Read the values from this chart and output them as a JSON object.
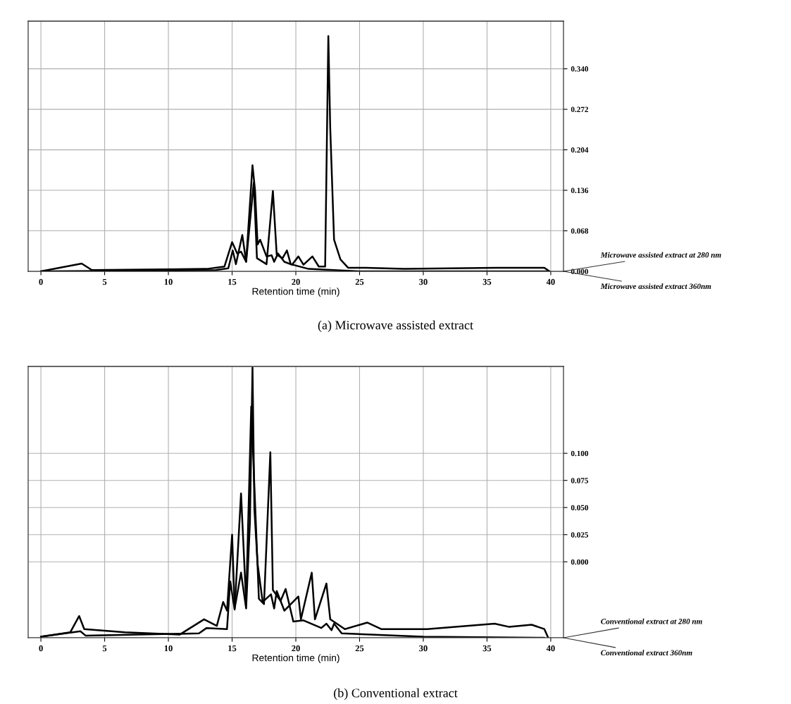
{
  "chart_data": [
    {
      "type": "line",
      "title": "(a) Microwave assisted extract",
      "xlabel": "Retention time (min)",
      "xlim": [
        -1,
        41
      ],
      "xticks": [
        0,
        5,
        10,
        15,
        20,
        25,
        30,
        35,
        40
      ],
      "ylim": [
        0,
        0.42
      ],
      "yticks": [
        {
          "value": 0,
          "label": "0.000"
        },
        {
          "value": 0.068,
          "label": "0.068"
        },
        {
          "value": 0.136,
          "label": "0.136"
        },
        {
          "value": 0.204,
          "label": "0.204"
        },
        {
          "value": 0.272,
          "label": "0.272"
        },
        {
          "value": 0.34,
          "label": "0.340"
        }
      ],
      "grid": true,
      "series": [
        {
          "name": "Microwave assisted extract at 280 nm",
          "color": "#000000",
          "x": [
            0,
            3.2,
            4.0,
            13.0,
            14.4,
            15.0,
            15.4,
            15.7,
            16.1,
            16.6,
            16.8,
            17.0,
            17.2,
            17.7,
            18.1,
            18.3,
            18.6,
            19.1,
            19.7,
            20.2,
            20.6,
            21.3,
            21.8,
            22.3,
            22.55,
            22.7,
            23.0,
            23.5,
            24.1,
            25.5,
            28.5,
            35.7,
            39.5,
            39.9
          ],
          "values": [
            0,
            0.013,
            0.002,
            0.004,
            0.008,
            0.049,
            0.03,
            0.033,
            0.016,
            0.178,
            0.136,
            0.045,
            0.053,
            0.025,
            0.027,
            0.016,
            0.03,
            0.016,
            0.011,
            0.025,
            0.011,
            0.025,
            0.008,
            0.008,
            0.395,
            0.24,
            0.053,
            0.02,
            0.006,
            0.006,
            0.004,
            0.006,
            0.006,
            0
          ]
        },
        {
          "name": "Microwave assisted extract 360nm",
          "color": "#000000",
          "x": [
            0,
            13.7,
            14.7,
            15.05,
            15.3,
            15.8,
            16.1,
            16.7,
            16.95,
            17.7,
            18.2,
            18.5,
            18.96,
            19.3,
            19.6,
            21.0,
            25.0,
            39.9
          ],
          "values": [
            0,
            0.002,
            0.005,
            0.035,
            0.012,
            0.061,
            0.016,
            0.149,
            0.022,
            0.012,
            0.135,
            0.028,
            0.022,
            0.035,
            0.012,
            0.004,
            0,
            0
          ]
        }
      ]
    },
    {
      "type": "line",
      "title": "(b) Conventional extract",
      "xlabel": "Retention time (min)",
      "xlim": [
        -1,
        41
      ],
      "xticks": [
        0,
        5,
        10,
        15,
        20,
        25,
        30,
        35,
        40
      ],
      "ylim": [
        -0.07,
        0.18
      ],
      "yticks": [
        {
          "value": 0,
          "label": "0.000"
        },
        {
          "value": 0.025,
          "label": "0.025"
        },
        {
          "value": 0.05,
          "label": "0.050"
        },
        {
          "value": 0.075,
          "label": "0.075"
        },
        {
          "value": 0.1,
          "label": "0.100"
        }
      ],
      "grid": true,
      "series": [
        {
          "name": "Conventional extract at 280 nm",
          "color": "#000000",
          "x": [
            0,
            2.3,
            3.0,
            3.4,
            6.6,
            10.9,
            12.8,
            13.8,
            14.3,
            14.6,
            15.0,
            15.2,
            15.7,
            16.1,
            16.4,
            16.6,
            16.75,
            17.0,
            17.4,
            18.05,
            18.3,
            18.5,
            19.1,
            20.2,
            20.4,
            21.25,
            21.5,
            22.4,
            22.7,
            23.85,
            25.6,
            26.7,
            30.3,
            35.6,
            36.75,
            38.5,
            39.5,
            39.8
          ],
          "values": [
            -0.069,
            -0.065,
            -0.05,
            -0.062,
            -0.065,
            -0.067,
            -0.053,
            -0.059,
            -0.037,
            -0.045,
            0.025,
            -0.043,
            -0.01,
            -0.043,
            0.037,
            0.179,
            0.048,
            -0.002,
            -0.037,
            -0.03,
            -0.043,
            -0.027,
            -0.045,
            -0.032,
            -0.053,
            -0.01,
            -0.053,
            -0.02,
            -0.053,
            -0.062,
            -0.056,
            -0.062,
            -0.062,
            -0.057,
            -0.06,
            -0.058,
            -0.062,
            -0.07
          ]
        },
        {
          "name": "Conventional extract 360nm",
          "color": "#000000",
          "x": [
            0,
            3.1,
            3.5,
            12.4,
            13.0,
            14.6,
            14.85,
            15.2,
            15.7,
            16.1,
            16.5,
            17.1,
            17.5,
            18.0,
            18.2,
            18.8,
            19.2,
            19.8,
            20.6,
            22.0,
            22.4,
            22.8,
            23.0,
            23.6,
            30.0,
            39.5
          ],
          "values": [
            -0.069,
            -0.064,
            -0.068,
            -0.066,
            -0.061,
            -0.062,
            -0.018,
            -0.044,
            0.063,
            -0.037,
            0.143,
            -0.034,
            -0.039,
            0.101,
            -0.026,
            -0.036,
            -0.025,
            -0.055,
            -0.054,
            -0.061,
            -0.057,
            -0.063,
            -0.057,
            -0.066,
            -0.069,
            -0.07
          ]
        }
      ]
    }
  ]
}
